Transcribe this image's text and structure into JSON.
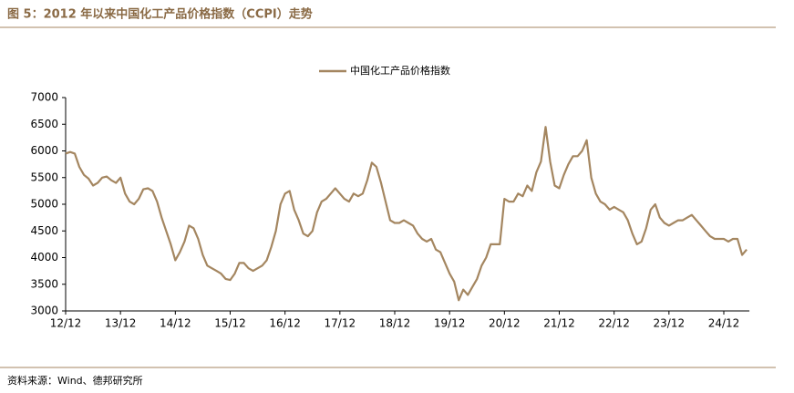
{
  "title": "图 5：2012 年以来中国化工产品价格指数（CCPI）走势",
  "source": "资料来源：Wind、德邦研究所",
  "chart_data": {
    "type": "line",
    "categories": [
      "12/12",
      null,
      null,
      null,
      null,
      null,
      null,
      null,
      null,
      null,
      null,
      null,
      "13/12",
      null,
      null,
      null,
      null,
      null,
      null,
      null,
      null,
      null,
      null,
      null,
      "14/12",
      null,
      null,
      null,
      null,
      null,
      null,
      null,
      null,
      null,
      null,
      null,
      "15/12",
      null,
      null,
      null,
      null,
      null,
      null,
      null,
      null,
      null,
      null,
      null,
      "16/12",
      null,
      null,
      null,
      null,
      null,
      null,
      null,
      null,
      null,
      null,
      null,
      "17/12",
      null,
      null,
      null,
      null,
      null,
      null,
      null,
      null,
      null,
      null,
      null,
      "18/12",
      null,
      null,
      null,
      null,
      null,
      null,
      null,
      null,
      null,
      null,
      null,
      "19/12",
      null,
      null,
      null,
      null,
      null,
      null,
      null,
      null,
      null,
      null,
      null,
      "20/12",
      null,
      null,
      null,
      null,
      null,
      null,
      null,
      null,
      null,
      null,
      null,
      "21/12",
      null,
      null,
      null,
      null,
      null,
      null,
      null,
      null,
      null,
      null,
      null,
      "22/12",
      null,
      null,
      null,
      null,
      null,
      null,
      null,
      null,
      null,
      null,
      null,
      "23/12",
      null,
      null,
      null,
      null,
      null,
      null,
      null,
      null,
      null,
      null,
      null,
      "24/12",
      null,
      null,
      null,
      null,
      null
    ],
    "series": [
      {
        "name": "中国化工产品价格指数",
        "color": "#a48660",
        "values": [
          5950,
          5980,
          5950,
          5700,
          5550,
          5480,
          5350,
          5400,
          5500,
          5520,
          5450,
          5400,
          5500,
          5200,
          5050,
          5000,
          5100,
          5280,
          5300,
          5250,
          5050,
          4750,
          4500,
          4250,
          3950,
          4100,
          4300,
          4600,
          4550,
          4350,
          4050,
          3850,
          3800,
          3750,
          3700,
          3600,
          3580,
          3700,
          3900,
          3900,
          3800,
          3750,
          3800,
          3850,
          3950,
          4200,
          4500,
          5000,
          5200,
          5250,
          4900,
          4700,
          4450,
          4400,
          4500,
          4850,
          5050,
          5100,
          5200,
          5300,
          5200,
          5100,
          5050,
          5200,
          5150,
          5200,
          5450,
          5780,
          5700,
          5400,
          5050,
          4700,
          4650,
          4650,
          4700,
          4650,
          4600,
          4450,
          4350,
          4300,
          4350,
          4150,
          4100,
          3900,
          3700,
          3550,
          3200,
          3400,
          3300,
          3450,
          3600,
          3850,
          4000,
          4250,
          4250,
          4250,
          5100,
          5050,
          5050,
          5200,
          5150,
          5350,
          5250,
          5600,
          5800,
          6450,
          5800,
          5350,
          5300,
          5550,
          5750,
          5900,
          5900,
          6000,
          6200,
          5500,
          5200,
          5050,
          5000,
          4900,
          4950,
          4900,
          4850,
          4700,
          4450,
          4250,
          4300,
          4550,
          4900,
          5000,
          4750,
          4650,
          4600,
          4650,
          4700,
          4700,
          4750,
          4800,
          4700,
          4600,
          4500,
          4400,
          4350,
          4350,
          4350,
          4300,
          4350,
          4350,
          4050,
          4150
        ]
      }
    ],
    "ylim": [
      3000,
      7000
    ],
    "yticks": [
      3000,
      3500,
      4000,
      4500,
      5000,
      5500,
      6000,
      6500,
      7000
    ],
    "grid": false,
    "legend": "top"
  }
}
